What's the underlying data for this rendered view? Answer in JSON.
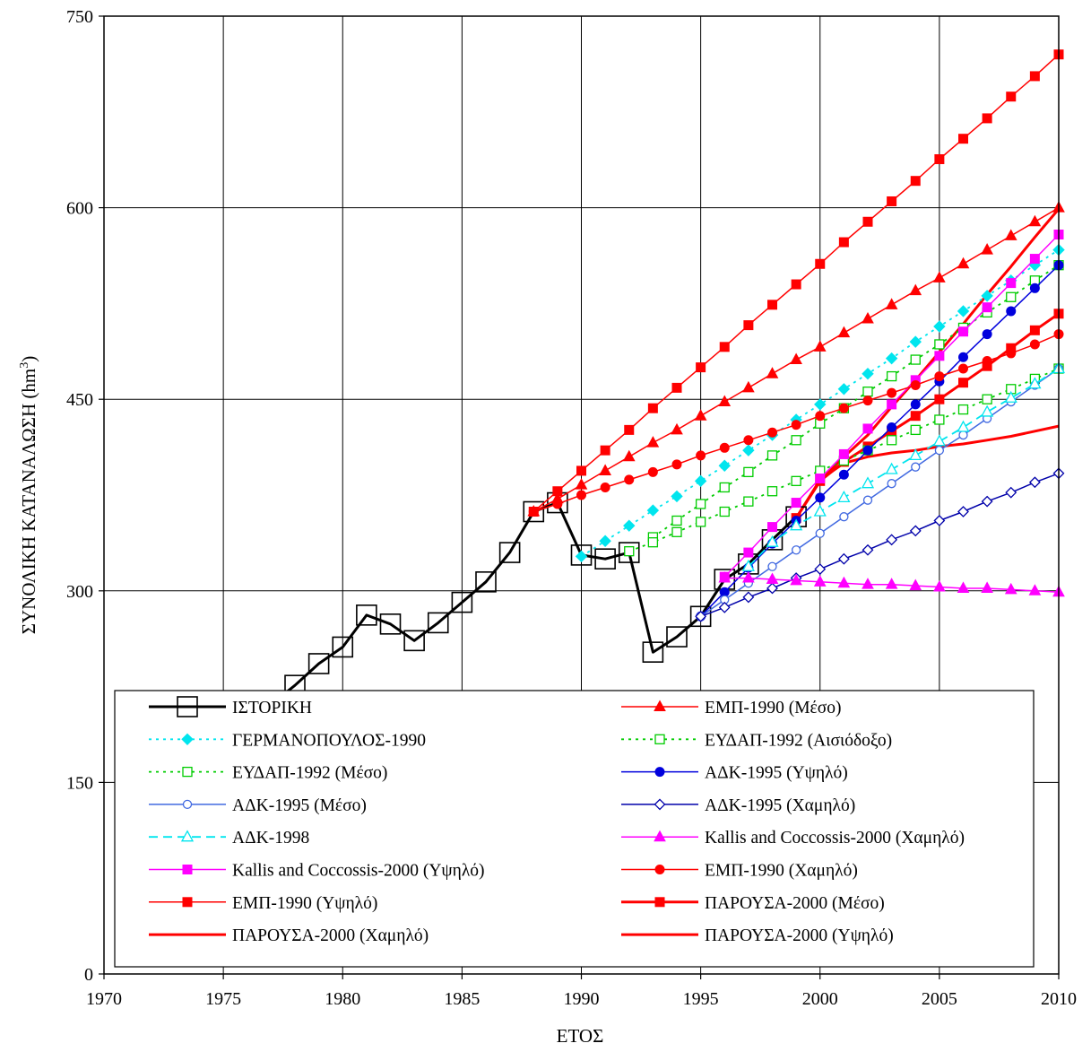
{
  "chart_data": {
    "type": "line",
    "title": "",
    "xlabel": "ΕΤΟΣ",
    "ylabel": "ΣΥΝΟΛΙΚΗ ΚΑΤΑΝΑΛΩΣΗ (hm",
    "ylabel_sup": "3",
    "ylabel_end": ")",
    "xlim": [
      1970,
      2010
    ],
    "ylim": [
      0,
      750
    ],
    "xticks": [
      "1970",
      "1975",
      "1980",
      "1985",
      "1990",
      "1995",
      "2000",
      "2005",
      "2010"
    ],
    "yticks": [
      "0",
      "150",
      "300",
      "450",
      "600",
      "750"
    ],
    "grid": true,
    "legend_position": "bottom",
    "series": [
      {
        "name": "ΙΣΤΟΡΙΚΗ",
        "color": "#000000",
        "width": 3,
        "dash": "",
        "marker": "square-open-big",
        "x": [
          1977,
          1978,
          1979,
          1980,
          1981,
          1982,
          1983,
          1984,
          1985,
          1986,
          1987,
          1988,
          1989,
          1990,
          1991,
          1992,
          1993,
          1994,
          1995,
          1996,
          1997,
          1998,
          1999
        ],
        "y": [
          211,
          226,
          243,
          256,
          281,
          274,
          261,
          275,
          291,
          307,
          330,
          362,
          369,
          328,
          325,
          330,
          252,
          264,
          280,
          309,
          321,
          340,
          358
        ]
      },
      {
        "name": "ΕΜΠ-1990 (Μέσο)",
        "color": "#ff0000",
        "width": 1.5,
        "dash": "",
        "marker": "triangle",
        "x": [
          1988,
          1989,
          1990,
          1991,
          1992,
          1993,
          1994,
          1995,
          1996,
          1997,
          1998,
          1999,
          2000,
          2001,
          2002,
          2003,
          2004,
          2005,
          2006,
          2007,
          2008,
          2009,
          2010
        ],
        "y": [
          362,
          372,
          383,
          394,
          405,
          416,
          426,
          437,
          448,
          459,
          470,
          481,
          491,
          502,
          513,
          524,
          535,
          545,
          556,
          567,
          578,
          589,
          600
        ]
      },
      {
        "name": "ΓΕΡΜΑΝΟΠΟΥΛΟΣ-1990",
        "color": "#00e5ee",
        "width": 1.8,
        "dash": "3,5",
        "marker": "diamond-filled",
        "x": [
          1990,
          1991,
          1992,
          1993,
          1994,
          1995,
          1996,
          1997,
          1998,
          1999,
          2000,
          2001,
          2002,
          2003,
          2004,
          2005,
          2006,
          2007,
          2008,
          2009,
          2010
        ],
        "y": [
          327,
          339,
          351,
          363,
          374,
          386,
          398,
          410,
          422,
          434,
          446,
          458,
          470,
          482,
          495,
          507,
          519,
          531,
          543,
          555,
          567
        ]
      },
      {
        "name": "ΕΥΔΑΠ-1992 (Αισιόδοξο)",
        "color": "#00cc00",
        "width": 1.8,
        "dash": "3,5",
        "marker": "square-dotted",
        "x": [
          1993,
          1994,
          1995,
          1996,
          1997,
          1998,
          1999,
          2000,
          2001,
          2002,
          2003,
          2004,
          2005,
          2006,
          2007,
          2008,
          2009,
          2010
        ],
        "y": [
          342,
          355,
          368,
          381,
          393,
          406,
          418,
          431,
          443,
          456,
          468,
          481,
          493,
          506,
          518,
          530,
          543,
          555
        ]
      },
      {
        "name": "ΕΥΔΑΠ-1992 (Μέσο)",
        "color": "#00cc00",
        "width": 1.8,
        "dash": "3,5",
        "marker": "square-dotted",
        "x": [
          1992,
          1993,
          1994,
          1995,
          1996,
          1997,
          1998,
          1999,
          2000,
          2001,
          2002,
          2003,
          2004,
          2005,
          2006,
          2007,
          2008,
          2009,
          2010
        ],
        "y": [
          331,
          338,
          346,
          354,
          362,
          370,
          378,
          386,
          394,
          402,
          410,
          418,
          426,
          434,
          442,
          450,
          458,
          466,
          474
        ]
      },
      {
        "name": "ΑΔΚ-1995 (Υψηλό)",
        "color": "#0000dd",
        "width": 1.5,
        "dash": "",
        "marker": "circle-filled",
        "x": [
          1995,
          1996,
          1997,
          1998,
          1999,
          2000,
          2001,
          2002,
          2003,
          2004,
          2005,
          2006,
          2007,
          2008,
          2009,
          2010
        ],
        "y": [
          280,
          299,
          318,
          337,
          355,
          373,
          391,
          410,
          428,
          446,
          464,
          483,
          501,
          519,
          537,
          555
        ]
      },
      {
        "name": "ΑΔΚ-1995 (Μέσο)",
        "color": "#4169e1",
        "width": 1.5,
        "dash": "",
        "marker": "circle-open",
        "x": [
          1995,
          1996,
          1997,
          1998,
          1999,
          2000,
          2001,
          2002,
          2003,
          2004,
          2005,
          2006,
          2007,
          2008,
          2009,
          2010
        ],
        "y": [
          280,
          293,
          306,
          319,
          332,
          345,
          358,
          371,
          384,
          397,
          410,
          422,
          435,
          448,
          461,
          474
        ]
      },
      {
        "name": "ΑΔΚ-1995 (Χαμηλό)",
        "color": "#0000aa",
        "width": 1.5,
        "dash": "",
        "marker": "diamond-open",
        "x": [
          1995,
          1996,
          1997,
          1998,
          1999,
          2000,
          2001,
          2002,
          2003,
          2004,
          2005,
          2006,
          2007,
          2008,
          2009,
          2010
        ],
        "y": [
          280,
          287,
          295,
          302,
          310,
          317,
          325,
          332,
          340,
          347,
          355,
          362,
          370,
          377,
          385,
          392
        ]
      },
      {
        "name": "ΑΔΚ-1998",
        "color": "#00e5ee",
        "width": 1.8,
        "dash": "10,6",
        "marker": "triangle-open",
        "x": [
          1997,
          1998,
          1999,
          2000,
          2001,
          2002,
          2003,
          2004,
          2005,
          2006,
          2007,
          2008,
          2009,
          2010
        ],
        "y": [
          319,
          338,
          351,
          362,
          373,
          384,
          395,
          406,
          417,
          428,
          440,
          451,
          462,
          474
        ]
      },
      {
        "name": "Kallis and Coccossis-2000 (Χαμηλό)",
        "color": "#ff00ff",
        "width": 1.5,
        "dash": "",
        "marker": "triangle-filled",
        "x": [
          1996,
          1997,
          1998,
          1999,
          2000,
          2001,
          2002,
          2003,
          2004,
          2005,
          2006,
          2007,
          2008,
          2009,
          2010
        ],
        "y": [
          310,
          310,
          309,
          308,
          307,
          306,
          305,
          305,
          304,
          303,
          302,
          302,
          301,
          300,
          299
        ]
      },
      {
        "name": "Kallis and Coccossis-2000 (Υψηλό)",
        "color": "#ff00ff",
        "width": 1.5,
        "dash": "",
        "marker": "square-filled",
        "x": [
          1996,
          1997,
          1998,
          1999,
          2000,
          2001,
          2002,
          2003,
          2004,
          2005,
          2006,
          2007,
          2008,
          2009,
          2010
        ],
        "y": [
          311,
          330,
          350,
          369,
          388,
          407,
          427,
          446,
          465,
          484,
          503,
          522,
          541,
          560,
          579
        ]
      },
      {
        "name": "ΕΜΠ-1990 (Χαμηλό)",
        "color": "#ff0000",
        "width": 1.5,
        "dash": "",
        "marker": "circle-filled",
        "x": [
          1988,
          1989,
          1990,
          1991,
          1992,
          1993,
          1994,
          1995,
          1996,
          1997,
          1998,
          1999,
          2000,
          2001,
          2002,
          2003,
          2004,
          2005,
          2006,
          2007,
          2008,
          2009,
          2010
        ],
        "y": [
          362,
          368,
          375,
          381,
          387,
          393,
          399,
          406,
          412,
          418,
          424,
          430,
          437,
          443,
          449,
          455,
          461,
          468,
          474,
          480,
          486,
          493,
          501
        ]
      },
      {
        "name": "ΕΜΠ-1990 (Υψηλό)",
        "color": "#ff0000",
        "width": 1.5,
        "dash": "",
        "marker": "square-filled",
        "x": [
          1988,
          1989,
          1990,
          1991,
          1992,
          1993,
          1994,
          1995,
          1996,
          1997,
          1998,
          1999,
          2000,
          2001,
          2002,
          2003,
          2004,
          2005,
          2006,
          2007,
          2008,
          2009,
          2010
        ],
        "y": [
          362,
          378,
          394,
          410,
          426,
          443,
          459,
          475,
          491,
          508,
          524,
          540,
          556,
          573,
          589,
          605,
          621,
          638,
          654,
          670,
          687,
          703,
          720
        ]
      },
      {
        "name": "ΠΑΡΟΥΣΑ-2000 (Μέσο)",
        "color": "#ff0000",
        "width": 3,
        "dash": "",
        "marker": "square-filled",
        "x": [
          1999,
          2000,
          2001,
          2002,
          2003,
          2004,
          2005,
          2006,
          2007,
          2008,
          2009,
          2010
        ],
        "y": [
          357,
          386,
          401,
          413,
          425,
          437,
          450,
          463,
          476,
          490,
          504,
          517
        ]
      },
      {
        "name": "ΠΑΡΟΥΣΑ-2000 (Χαμηλό)",
        "color": "#ff0000",
        "width": 3,
        "dash": "",
        "marker": "none",
        "x": [
          1999,
          2000,
          2001,
          2002,
          2003,
          2004,
          2005,
          2006,
          2007,
          2008,
          2009,
          2010
        ],
        "y": [
          357,
          387,
          400,
          405,
          408,
          410,
          413,
          415,
          418,
          421,
          425,
          429
        ]
      },
      {
        "name": "ΠΑΡΟΥΣΑ-2000 (Υψηλό)",
        "color": "#ff0000",
        "width": 3,
        "dash": "",
        "marker": "none",
        "x": [
          1999,
          2000,
          2001,
          2002,
          2003,
          2004,
          2005,
          2006,
          2007,
          2008,
          2009,
          2010
        ],
        "y": [
          357,
          386,
          405,
          422,
          444,
          465,
          487,
          509,
          532,
          554,
          577,
          599
        ]
      }
    ]
  }
}
